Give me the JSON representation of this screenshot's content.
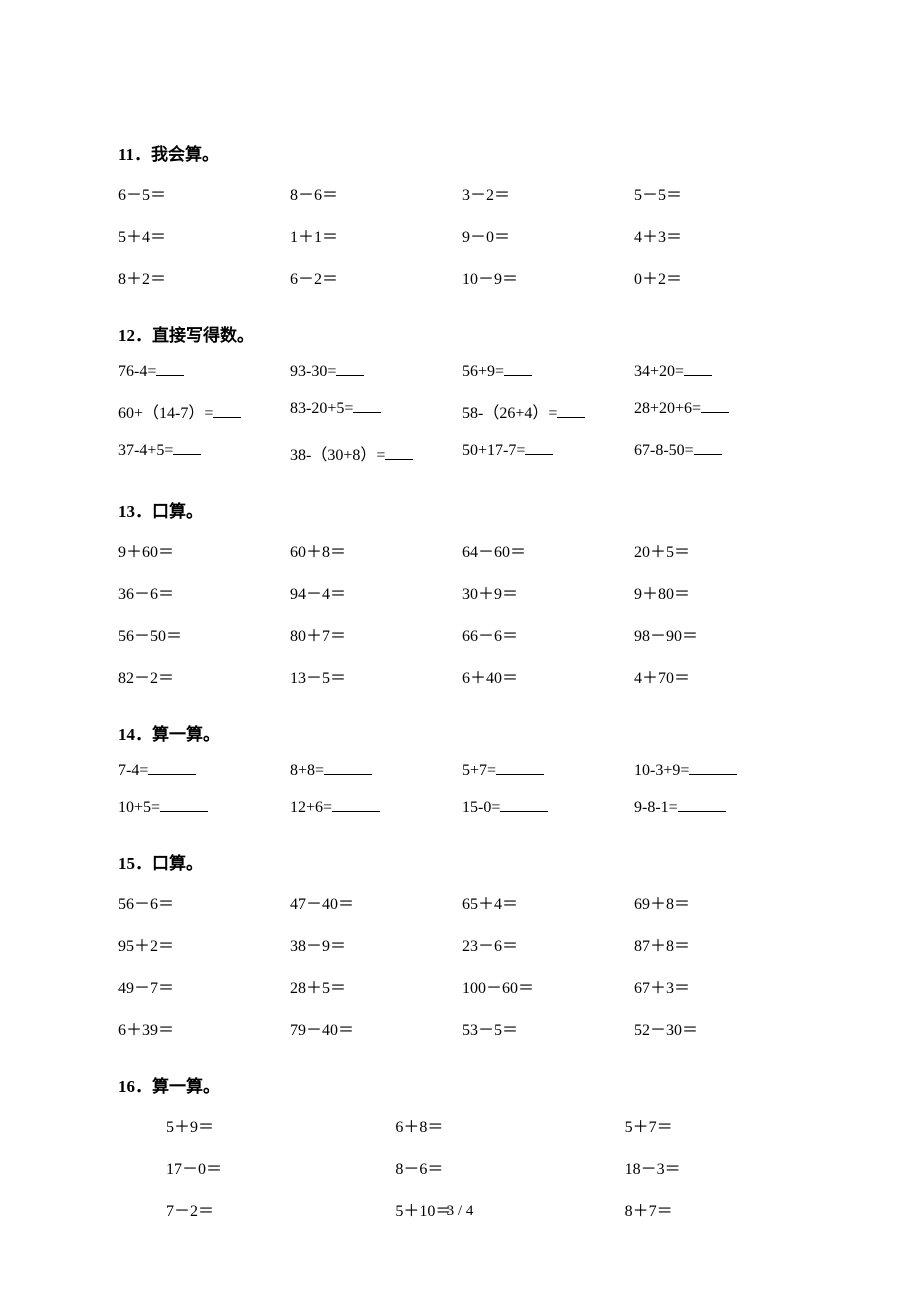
{
  "page_number": "3 / 4",
  "sections": [
    {
      "id": "s11",
      "title": "11．我会算。",
      "layout": "grid4",
      "blank_style": "none",
      "items": [
        "6－5＝",
        "8－6＝",
        "3－2＝",
        "5－5＝",
        "5＋4＝",
        "1＋1＝",
        "9－0＝",
        "4＋3＝",
        "8＋2＝",
        "6－2＝",
        "10－9＝",
        "0＋2＝"
      ]
    },
    {
      "id": "s12",
      "title": "12．直接写得数。",
      "layout": "grid4",
      "blank_style": "short",
      "items": [
        "76-4=",
        "93-30=",
        "56+9=",
        "34+20=",
        "60+（14-7）=",
        "83-20+5=",
        "58-（26+4）=",
        "28+20+6=",
        "37-4+5=",
        "38-（30+8）=",
        "50+17-7=",
        "67-8-50="
      ]
    },
    {
      "id": "s13",
      "title": "13．口算。",
      "layout": "grid4",
      "blank_style": "none",
      "items": [
        "9＋60＝",
        "60＋8＝",
        "64－60＝",
        "20＋5＝",
        "36－6＝",
        "94－4＝",
        "30＋9＝",
        "9＋80＝",
        "56－50＝",
        "80＋7＝",
        "66－6＝",
        "98－90＝",
        "82－2＝",
        "13－5＝",
        "6＋40＝",
        "4＋70＝"
      ]
    },
    {
      "id": "s14",
      "title": "14．算一算。",
      "layout": "grid4",
      "blank_style": "long",
      "items": [
        "7-4=",
        "8+8=",
        "5+7=",
        "10-3+9=",
        "10+5=",
        "12+6=",
        "15-0=",
        "9-8-1="
      ]
    },
    {
      "id": "s15",
      "title": "15．口算。",
      "layout": "grid4",
      "blank_style": "none",
      "items": [
        "56－6＝",
        "47－40＝",
        "65＋4＝",
        "69＋8＝",
        "95＋2＝",
        "38－9＝",
        "23－6＝",
        "87＋8＝",
        "49－7＝",
        "28＋5＝",
        "100－60＝",
        "67＋3＝",
        "6＋39＝",
        "79－40＝",
        "53－5＝",
        "52－30＝"
      ]
    },
    {
      "id": "s16",
      "title": "16．算一算。",
      "layout": "grid3",
      "blank_style": "none",
      "items": [
        "5＋9＝",
        "6＋8＝",
        "5＋7＝",
        "17－0＝",
        "8－6＝",
        "18－3＝",
        "7－2＝",
        "5＋10＝",
        "8＋7＝"
      ]
    }
  ]
}
